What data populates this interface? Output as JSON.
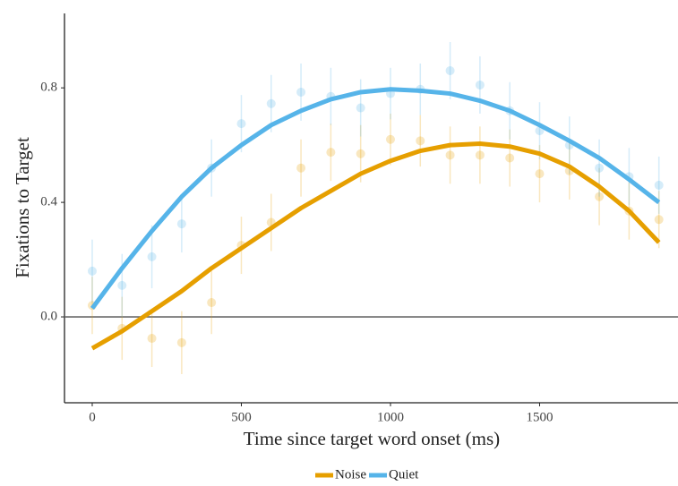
{
  "chart_data": {
    "type": "line",
    "xlabel": "Time since target word onset (ms)",
    "ylabel": "Fixations to Target",
    "x": [
      0,
      100,
      200,
      300,
      400,
      500,
      600,
      700,
      800,
      900,
      1000,
      1100,
      1200,
      1300,
      1400,
      1500,
      1600,
      1700,
      1800,
      1900
    ],
    "series": [
      {
        "name": "Noise",
        "color": "#e69f00",
        "values": [
          -0.11,
          -0.05,
          0.02,
          0.09,
          0.17,
          0.24,
          0.31,
          0.38,
          0.44,
          0.5,
          0.545,
          0.58,
          0.6,
          0.605,
          0.595,
          0.57,
          0.525,
          0.455,
          0.37,
          0.26
        ],
        "points": [
          0.04,
          -0.04,
          -0.075,
          -0.09,
          0.05,
          0.25,
          0.33,
          0.52,
          0.575,
          0.57,
          0.62,
          0.615,
          0.565,
          0.565,
          0.555,
          0.5,
          0.51,
          0.42,
          0.37,
          0.34
        ],
        "errors": [
          0.1,
          0.11,
          0.1,
          0.11,
          0.11,
          0.1,
          0.1,
          0.1,
          0.1,
          0.1,
          0.09,
          0.09,
          0.1,
          0.1,
          0.1,
          0.1,
          0.1,
          0.1,
          0.1,
          0.1
        ]
      },
      {
        "name": "Quiet",
        "color": "#56b4e9",
        "values": [
          0.03,
          0.17,
          0.3,
          0.42,
          0.52,
          0.6,
          0.67,
          0.72,
          0.76,
          0.785,
          0.795,
          0.79,
          0.78,
          0.755,
          0.72,
          0.67,
          0.615,
          0.555,
          0.48,
          0.4
        ],
        "points": [
          0.16,
          0.11,
          0.21,
          0.325,
          0.52,
          0.675,
          0.745,
          0.785,
          0.77,
          0.73,
          0.78,
          0.795,
          0.86,
          0.81,
          0.72,
          0.65,
          0.6,
          0.52,
          0.49,
          0.46
        ],
        "errors": [
          0.11,
          0.11,
          0.11,
          0.1,
          0.1,
          0.1,
          0.1,
          0.1,
          0.1,
          0.1,
          0.09,
          0.09,
          0.1,
          0.1,
          0.1,
          0.1,
          0.1,
          0.1,
          0.1,
          0.1
        ]
      }
    ],
    "hline": 0,
    "xlim": [
      -93,
      1964
    ],
    "ylim": [
      -0.3,
      1.06
    ],
    "xticks": [
      0,
      500,
      1000,
      1500
    ],
    "yticks": [
      {
        "value": 0,
        "label": "0.0"
      },
      {
        "value": 0.4,
        "label": "0.4"
      },
      {
        "value": 0.8,
        "label": "0.8"
      }
    ],
    "legend": "bottom"
  }
}
